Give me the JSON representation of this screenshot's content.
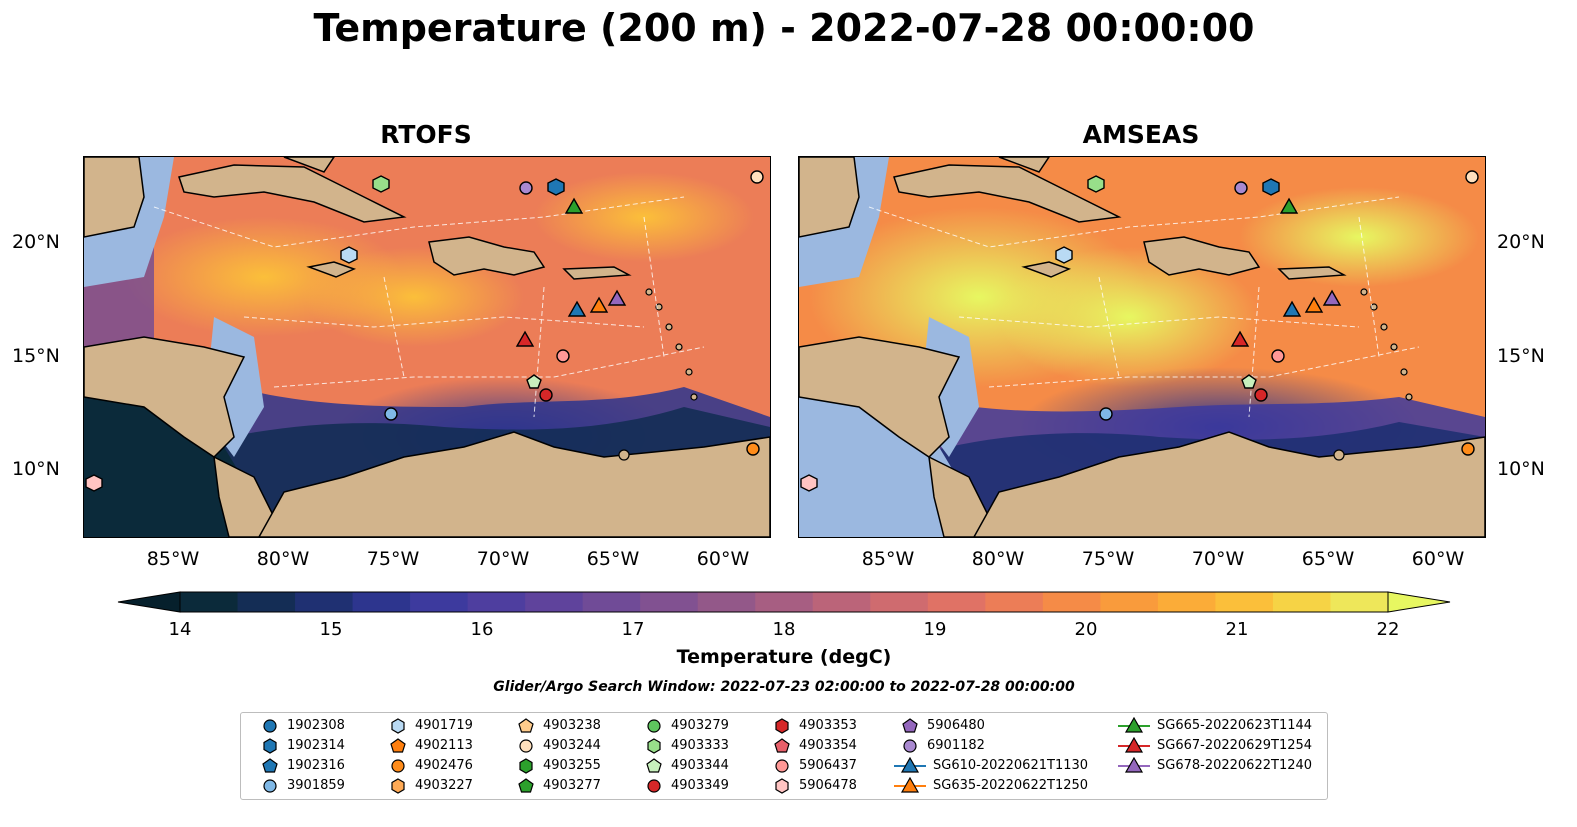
{
  "title": "Temperature (200 m) - 2022-07-28 00:00:00",
  "panels": {
    "left": {
      "title": "RTOFS"
    },
    "right": {
      "title": "AMSEAS"
    }
  },
  "axes": {
    "lat_labels": [
      "20°N",
      "15°N",
      "10°N"
    ],
    "lon_labels": [
      "85°W",
      "80°W",
      "75°W",
      "70°W",
      "65°W",
      "60°W"
    ]
  },
  "colorbar": {
    "label": "Temperature (degC)",
    "min": 14,
    "max": 22,
    "ticks": [
      "14",
      "15",
      "16",
      "17",
      "18",
      "19",
      "20",
      "21",
      "22"
    ],
    "extend": "both",
    "colors": [
      "#0b2a3a",
      "#142d55",
      "#1f3072",
      "#2d358e",
      "#3d3a9e",
      "#4e3e9f",
      "#5f439c",
      "#704b97",
      "#815191",
      "#935889",
      "#a75e82",
      "#bb6479",
      "#cf6b6f",
      "#e07265",
      "#ec7d57",
      "#f58b47",
      "#f99b3c",
      "#fbac38",
      "#fbbf3a",
      "#f6d345",
      "#eee75a"
    ],
    "under_color": "#06202c",
    "over_color": "#e7f761"
  },
  "search_window": "Glider/Argo Search Window: 2022-07-23 02:00:00 to 2022-07-28 00:00:00",
  "map_colors": {
    "land": "#d2b48c",
    "shelf": "#9bb8e0",
    "coast": "#000000"
  },
  "legend": {
    "columns": [
      [
        {
          "label": "1902308",
          "marker": "circle",
          "color": "#1f77b4"
        },
        {
          "label": "1902314",
          "marker": "hexagon",
          "color": "#1f77b4"
        },
        {
          "label": "1902316",
          "marker": "pentagon",
          "color": "#1f77b4"
        },
        {
          "label": "3901859",
          "marker": "circle",
          "color": "#7fb8e6"
        }
      ],
      [
        {
          "label": "4901719",
          "marker": "hexagon",
          "color": "#b9daf4"
        },
        {
          "label": "4902113",
          "marker": "pentagon",
          "color": "#ff7f0e"
        },
        {
          "label": "4902476",
          "marker": "circle",
          "color": "#ff8c1a"
        },
        {
          "label": "4903227",
          "marker": "hexagon",
          "color": "#ffaa55"
        }
      ],
      [
        {
          "label": "4903238",
          "marker": "pentagon",
          "color": "#ffcc8c"
        },
        {
          "label": "4903244",
          "marker": "circle",
          "color": "#ffe0bd"
        },
        {
          "label": "4903255",
          "marker": "hexagon",
          "color": "#2ca02c"
        },
        {
          "label": "4903277",
          "marker": "pentagon",
          "color": "#2ca02c"
        }
      ],
      [
        {
          "label": "4903279",
          "marker": "circle",
          "color": "#5ec55e"
        },
        {
          "label": "4903333",
          "marker": "hexagon",
          "color": "#98df8a"
        },
        {
          "label": "4903344",
          "marker": "pentagon",
          "color": "#c8f0bd"
        },
        {
          "label": "4903349",
          "marker": "circle",
          "color": "#d62728"
        }
      ],
      [
        {
          "label": "4903353",
          "marker": "hexagon",
          "color": "#d62728"
        },
        {
          "label": "4903354",
          "marker": "pentagon",
          "color": "#e8606a"
        },
        {
          "label": "5906437",
          "marker": "circle",
          "color": "#ff9896"
        },
        {
          "label": "5906478",
          "marker": "hexagon",
          "color": "#ffc4c2"
        }
      ],
      [
        {
          "label": "5906480",
          "marker": "pentagon",
          "color": "#9467bd"
        },
        {
          "label": "6901182",
          "marker": "circle",
          "color": "#a989d0"
        },
        {
          "label": "SG610-20220621T1130",
          "marker": "triangle-line",
          "color": "#1f77b4"
        },
        {
          "label": "SG635-20220622T1250",
          "marker": "triangle-line",
          "color": "#ff7f0e"
        }
      ],
      [
        {
          "label": "SG665-20220623T1144",
          "marker": "triangle-line",
          "color": "#2ca02c"
        },
        {
          "label": "SG667-20220629T1254",
          "marker": "triangle-line",
          "color": "#d62728"
        },
        {
          "label": "SG678-20220622T1240",
          "marker": "triangle-line",
          "color": "#9467bd"
        }
      ]
    ]
  }
}
